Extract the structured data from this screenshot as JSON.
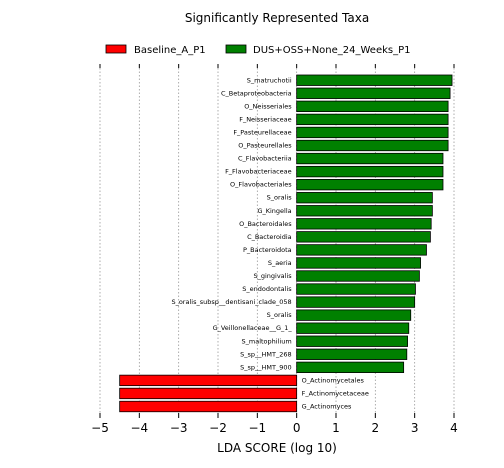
{
  "chart_data": {
    "type": "bar",
    "orientation": "horizontal",
    "title": "Significantly Represented Taxa",
    "xlabel": "LDA SCORE (log 10)",
    "ylabel": "",
    "xlim": [
      -5,
      4
    ],
    "xticks": [
      -5,
      -4,
      -3,
      -2,
      -1,
      0,
      1,
      2,
      3,
      4
    ],
    "grid": "vertical-dotted",
    "legend_position": "top",
    "legend": [
      {
        "name": "Baseline_A_P1",
        "color": "#ff0000"
      },
      {
        "name": "DUS+OSS+None_24_Weeks_P1",
        "color": "#008000"
      }
    ],
    "bars": [
      {
        "label": "S_matruchotii",
        "value": 3.95,
        "group": 1
      },
      {
        "label": "C_Betaproteobacteria",
        "value": 3.9,
        "group": 1
      },
      {
        "label": "O_Neisseriales",
        "value": 3.85,
        "group": 1
      },
      {
        "label": "F_Neisseriaceae",
        "value": 3.85,
        "group": 1
      },
      {
        "label": "F_Pasteurellaceae",
        "value": 3.85,
        "group": 1
      },
      {
        "label": "O_Pasteurellales",
        "value": 3.85,
        "group": 1
      },
      {
        "label": "C_Flavobacteriia",
        "value": 3.72,
        "group": 1
      },
      {
        "label": "F_Flavobacteriaceae",
        "value": 3.72,
        "group": 1
      },
      {
        "label": "O_Flavobacteriales",
        "value": 3.72,
        "group": 1
      },
      {
        "label": "S_oralis",
        "value": 3.45,
        "group": 1
      },
      {
        "label": "G_Kingella",
        "value": 3.45,
        "group": 1
      },
      {
        "label": "O_Bacteroidales",
        "value": 3.42,
        "group": 1
      },
      {
        "label": "C_Bacteroidia",
        "value": 3.4,
        "group": 1
      },
      {
        "label": "P_Bacteroidota",
        "value": 3.3,
        "group": 1
      },
      {
        "label": "S_aeria",
        "value": 3.15,
        "group": 1
      },
      {
        "label": "S_gingivalis",
        "value": 3.12,
        "group": 1
      },
      {
        "label": "S_endodontalis",
        "value": 3.02,
        "group": 1
      },
      {
        "label": "S_oralis_subsp__dentisani_clade_058",
        "value": 3.0,
        "group": 1
      },
      {
        "label": "S_oralis",
        "value": 2.9,
        "group": 1
      },
      {
        "label": "G_Veillonellaceae__G_1_",
        "value": 2.85,
        "group": 1
      },
      {
        "label": "S_maltophilium",
        "value": 2.82,
        "group": 1
      },
      {
        "label": "S_sp__HMT_268",
        "value": 2.8,
        "group": 1
      },
      {
        "label": "S_sp__HMT_900",
        "value": 2.72,
        "group": 1
      },
      {
        "label": "O_Actinomycetales",
        "value": -4.5,
        "group": 0
      },
      {
        "label": "F_Actinomycetaceae",
        "value": -4.5,
        "group": 0
      },
      {
        "label": "G_Actinomyces",
        "value": -4.5,
        "group": 0
      }
    ]
  }
}
